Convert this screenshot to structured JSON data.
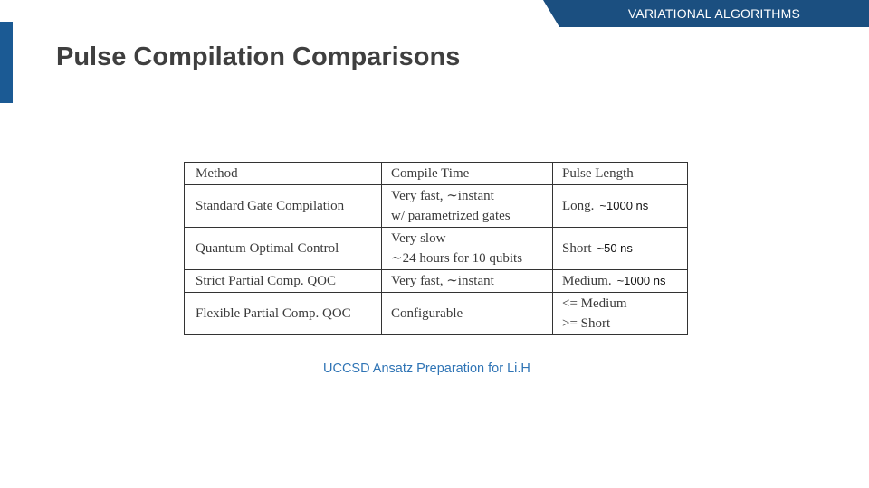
{
  "header": {
    "section_label": "VARIATIONAL ALGORITHMS",
    "title": "Pulse Compilation Comparisons"
  },
  "table": {
    "headers": [
      "Method",
      "Compile Time",
      "Pulse Length"
    ],
    "rows": [
      {
        "method": "Standard Gate Compilation",
        "compile_time": [
          "Very fast, ∼instant",
          "w/ parametrized gates"
        ],
        "pulse_length": [
          "Long."
        ],
        "note": "~1000 ns"
      },
      {
        "method": "Quantum Optimal Control",
        "compile_time": [
          "Very slow",
          "∼24 hours for 10 qubits"
        ],
        "pulse_length": [
          "Short"
        ],
        "note": "~50 ns"
      },
      {
        "method": "Strict Partial Comp. QOC",
        "compile_time": [
          "Very fast, ∼instant"
        ],
        "pulse_length": [
          "Medium."
        ],
        "note": "~1000 ns"
      },
      {
        "method": "Flexible Partial Comp. QOC",
        "compile_time": [
          "Configurable"
        ],
        "pulse_length": [
          "<= Medium",
          ">= Short"
        ],
        "note": ""
      }
    ]
  },
  "caption": "UCCSD Ansatz Preparation for Li.H",
  "colors": {
    "banner": "#1b4f80",
    "accent": "#1b5a94",
    "title": "#3f3f3f",
    "caption": "#2f74b5"
  }
}
